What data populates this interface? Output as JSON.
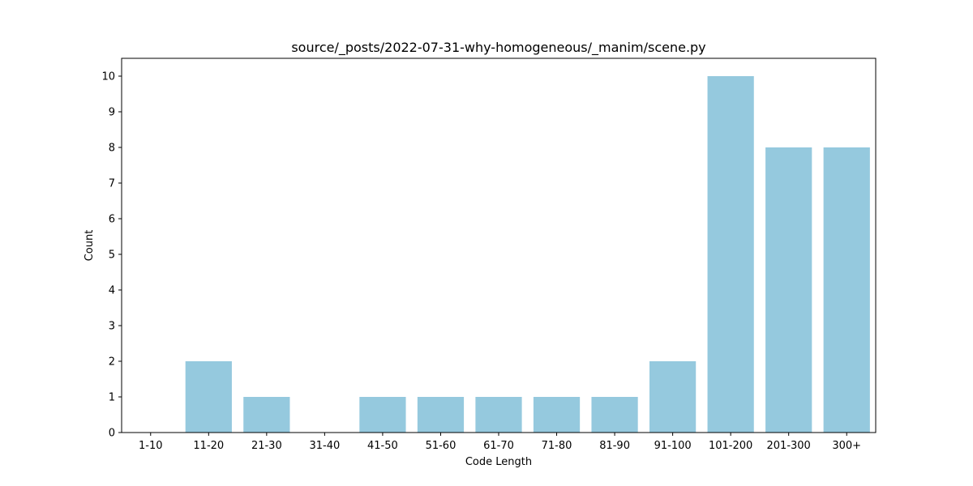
{
  "chart_data": {
    "type": "bar",
    "title": "source/_posts/2022-07-31-why-homogeneous/_manim/scene.py",
    "xlabel": "Code Length",
    "ylabel": "Count",
    "categories": [
      "1-10",
      "11-20",
      "21-30",
      "31-40",
      "41-50",
      "51-60",
      "61-70",
      "71-80",
      "81-90",
      "91-100",
      "101-200",
      "201-300",
      "300+"
    ],
    "values": [
      0,
      2,
      1,
      0,
      1,
      1,
      1,
      1,
      1,
      2,
      10,
      8,
      8
    ],
    "ylim": [
      0,
      10.5
    ],
    "yticks": [
      0,
      1,
      2,
      3,
      4,
      5,
      6,
      7,
      8,
      9,
      10
    ],
    "grid": false,
    "legend": "none",
    "colors": {
      "bar": "#95c9de",
      "axes": "#000000",
      "background": "#ffffff"
    }
  }
}
